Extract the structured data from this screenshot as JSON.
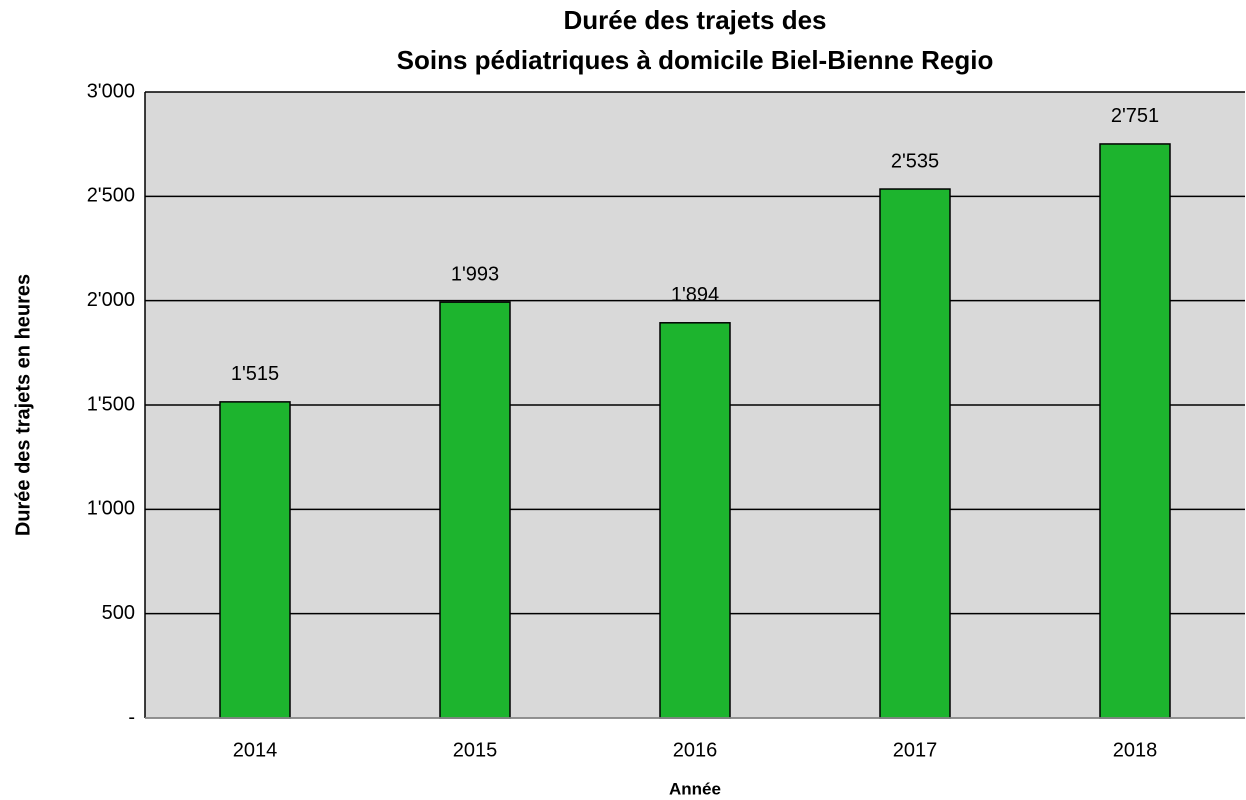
{
  "chart_data": {
    "type": "bar",
    "title": [
      "Durée des trajets des",
      "Soins pédiatriques à domicile Biel-Bienne Regio"
    ],
    "x_label": "Année",
    "y_label": "Durée des trajets en heures",
    "categories": [
      "2014",
      "2015",
      "2016",
      "2017",
      "2018"
    ],
    "values": [
      1515,
      1993,
      1894,
      2535,
      2751
    ],
    "value_labels": [
      "1'515",
      "1'993",
      "1'894",
      "2'535",
      "2'751"
    ],
    "color": "#1db42e",
    "ylim": [
      0,
      3000
    ],
    "yticks": [
      {
        "value": 0,
        "label": "-"
      },
      500,
      {
        "value": 1000,
        "label": "1'000"
      },
      {
        "value": 1500,
        "label": "1'500"
      },
      {
        "value": 2000,
        "label": "2'000"
      },
      {
        "value": 2500,
        "label": "2'500"
      },
      {
        "value": 3000,
        "label": "3'000"
      }
    ],
    "grid": true
  }
}
